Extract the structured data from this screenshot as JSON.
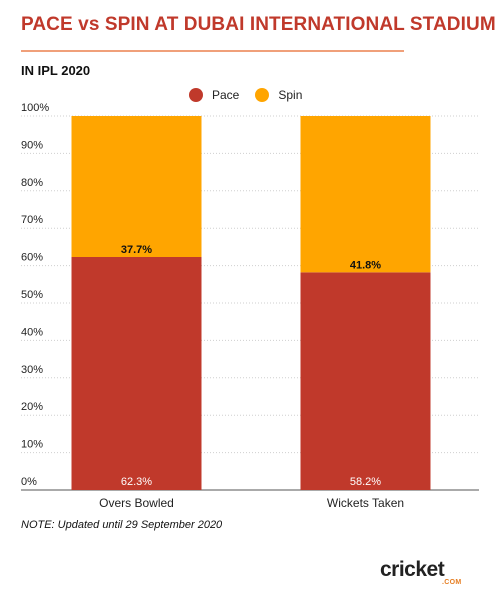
{
  "header": {
    "title": "PACE vs SPIN AT DUBAI INTERNATIONAL STADIUM",
    "subtitle": "IN IPL 2020"
  },
  "footer": {
    "note": "NOTE: Updated until 29 September 2020",
    "logo_text": "cricket",
    "logo_sub": ".COM"
  },
  "colors": {
    "pace": "#c0392b",
    "spin": "#ffa500",
    "title": "#c0392b"
  },
  "chart_data": {
    "type": "bar",
    "stacked": true,
    "percent": true,
    "categories": [
      "Overs Bowled",
      "Wickets Taken"
    ],
    "series": [
      {
        "name": "Pace",
        "values": [
          62.3,
          58.2
        ],
        "labels": [
          "62.3%",
          "58.2%"
        ],
        "color": "#c0392b"
      },
      {
        "name": "Spin",
        "values": [
          37.7,
          41.8
        ],
        "labels": [
          "37.7%",
          "41.8%"
        ],
        "color": "#ffa500"
      }
    ],
    "ylim": [
      0,
      100
    ],
    "yticks": [
      "0%",
      "10%",
      "20%",
      "30%",
      "40%",
      "50%",
      "60%",
      "70%",
      "80%",
      "90%",
      "100%"
    ],
    "grid": true,
    "legend_position": "top"
  }
}
